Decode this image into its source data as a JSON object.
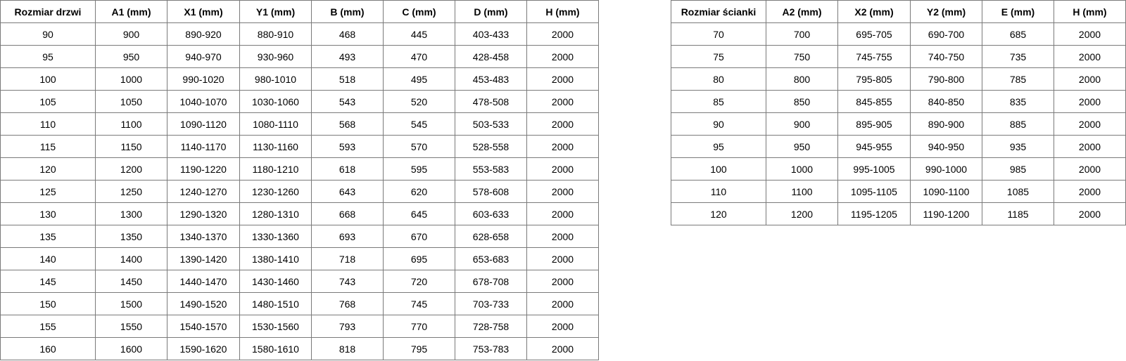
{
  "doors_table": {
    "headers": [
      "Rozmiar drzwi",
      "A1 (mm)",
      "X1 (mm)",
      "Y1 (mm)",
      "B (mm)",
      "C (mm)",
      "D (mm)",
      "H (mm)"
    ],
    "rows": [
      [
        "90",
        "900",
        "890-920",
        "880-910",
        "468",
        "445",
        "403-433",
        "2000"
      ],
      [
        "95",
        "950",
        "940-970",
        "930-960",
        "493",
        "470",
        "428-458",
        "2000"
      ],
      [
        "100",
        "1000",
        "990-1020",
        "980-1010",
        "518",
        "495",
        "453-483",
        "2000"
      ],
      [
        "105",
        "1050",
        "1040-1070",
        "1030-1060",
        "543",
        "520",
        "478-508",
        "2000"
      ],
      [
        "110",
        "1100",
        "1090-1120",
        "1080-1110",
        "568",
        "545",
        "503-533",
        "2000"
      ],
      [
        "115",
        "1150",
        "1140-1170",
        "1130-1160",
        "593",
        "570",
        "528-558",
        "2000"
      ],
      [
        "120",
        "1200",
        "1190-1220",
        "1180-1210",
        "618",
        "595",
        "553-583",
        "2000"
      ],
      [
        "125",
        "1250",
        "1240-1270",
        "1230-1260",
        "643",
        "620",
        "578-608",
        "2000"
      ],
      [
        "130",
        "1300",
        "1290-1320",
        "1280-1310",
        "668",
        "645",
        "603-633",
        "2000"
      ],
      [
        "135",
        "1350",
        "1340-1370",
        "1330-1360",
        "693",
        "670",
        "628-658",
        "2000"
      ],
      [
        "140",
        "1400",
        "1390-1420",
        "1380-1410",
        "718",
        "695",
        "653-683",
        "2000"
      ],
      [
        "145",
        "1450",
        "1440-1470",
        "1430-1460",
        "743",
        "720",
        "678-708",
        "2000"
      ],
      [
        "150",
        "1500",
        "1490-1520",
        "1480-1510",
        "768",
        "745",
        "703-733",
        "2000"
      ],
      [
        "155",
        "1550",
        "1540-1570",
        "1530-1560",
        "793",
        "770",
        "728-758",
        "2000"
      ],
      [
        "160",
        "1600",
        "1590-1620",
        "1580-1610",
        "818",
        "795",
        "753-783",
        "2000"
      ]
    ]
  },
  "panels_table": {
    "headers": [
      "Rozmiar ścianki",
      "A2 (mm)",
      "X2 (mm)",
      "Y2 (mm)",
      "E (mm)",
      "H (mm)"
    ],
    "rows": [
      [
        "70",
        "700",
        "695-705",
        "690-700",
        "685",
        "2000"
      ],
      [
        "75",
        "750",
        "745-755",
        "740-750",
        "735",
        "2000"
      ],
      [
        "80",
        "800",
        "795-805",
        "790-800",
        "785",
        "2000"
      ],
      [
        "85",
        "850",
        "845-855",
        "840-850",
        "835",
        "2000"
      ],
      [
        "90",
        "900",
        "895-905",
        "890-900",
        "885",
        "2000"
      ],
      [
        "95",
        "950",
        "945-955",
        "940-950",
        "935",
        "2000"
      ],
      [
        "100",
        "1000",
        "995-1005",
        "990-1000",
        "985",
        "2000"
      ],
      [
        "110",
        "1100",
        "1095-1105",
        "1090-1100",
        "1085",
        "2000"
      ],
      [
        "120",
        "1200",
        "1195-1205",
        "1190-1200",
        "1185",
        "2000"
      ]
    ]
  }
}
